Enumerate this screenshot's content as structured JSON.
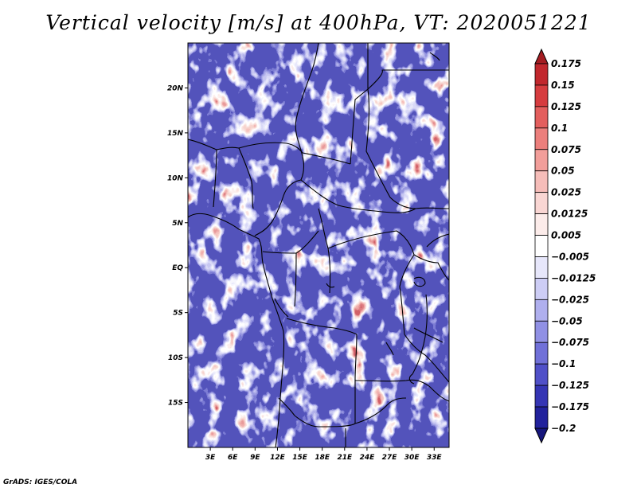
{
  "title": "Vertical velocity [m/s] at 400hPa, VT: 2020051221",
  "footer": "GrADS: IGES/COLA",
  "map": {
    "lon_range": [
      0,
      35
    ],
    "lat_range": [
      -20,
      25
    ],
    "lat_ticks": [
      "20N",
      "15N",
      "10N",
      "5N",
      "EQ",
      "5S",
      "10S",
      "15S"
    ],
    "lon_ticks": [
      "3E",
      "6E",
      "9E",
      "12E",
      "15E",
      "18E",
      "21E",
      "24E",
      "27E",
      "30E",
      "33E"
    ]
  },
  "colorbar": {
    "labels": [
      "0.175",
      "0.15",
      "0.125",
      "0.1",
      "0.075",
      "0.05",
      "0.025",
      "0.0125",
      "0.005",
      "-0.005",
      "-0.0125",
      "-0.025",
      "-0.05",
      "-0.075",
      "-0.1",
      "-0.125",
      "-0.175",
      "-0.2"
    ],
    "colors": [
      "#a41d22",
      "#c1272d",
      "#d63c3f",
      "#e35e5d",
      "#ec7f7c",
      "#f29e9a",
      "#f6bdb9",
      "#f9d6d3",
      "#fcecea",
      "#ffffff",
      "#e7e7fb",
      "#cdcdf5",
      "#afafee",
      "#9090e4",
      "#7070d8",
      "#5050c8",
      "#3535b4",
      "#22229c",
      "#16167c"
    ],
    "colors_comment": "order top to bottom"
  }
}
